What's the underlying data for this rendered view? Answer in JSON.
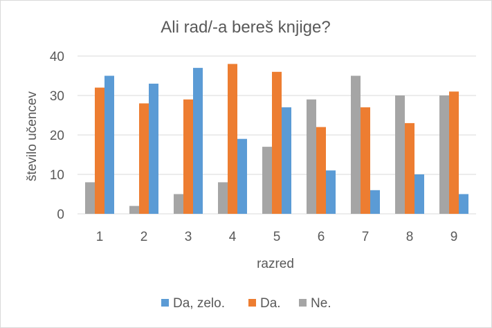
{
  "chart_data": {
    "type": "bar",
    "title": "Ali rad/-a bereš knjige?",
    "xlabel": "razred",
    "ylabel": "število učencev",
    "ylim": [
      0,
      40
    ],
    "yticks": [
      "0",
      "10",
      "20",
      "30",
      "40"
    ],
    "categories": [
      "1",
      "2",
      "3",
      "4",
      "5",
      "6",
      "7",
      "8",
      "9"
    ],
    "grid": true,
    "legend_position": "bottom",
    "series": [
      {
        "name": "Ne.",
        "color": "#a5a5a5",
        "values": [
          8,
          2,
          5,
          8,
          17,
          29,
          35,
          30,
          30
        ]
      },
      {
        "name": "Da.",
        "color": "#ed7d31",
        "values": [
          32,
          28,
          29,
          38,
          36,
          22,
          27,
          23,
          31
        ]
      },
      {
        "name": "Da, zelo.",
        "color": "#5b9bd5",
        "values": [
          35,
          33,
          37,
          19,
          27,
          11,
          6,
          10,
          5
        ]
      }
    ],
    "legend_order": [
      "Da, zelo.",
      "Da.",
      "Ne."
    ]
  }
}
